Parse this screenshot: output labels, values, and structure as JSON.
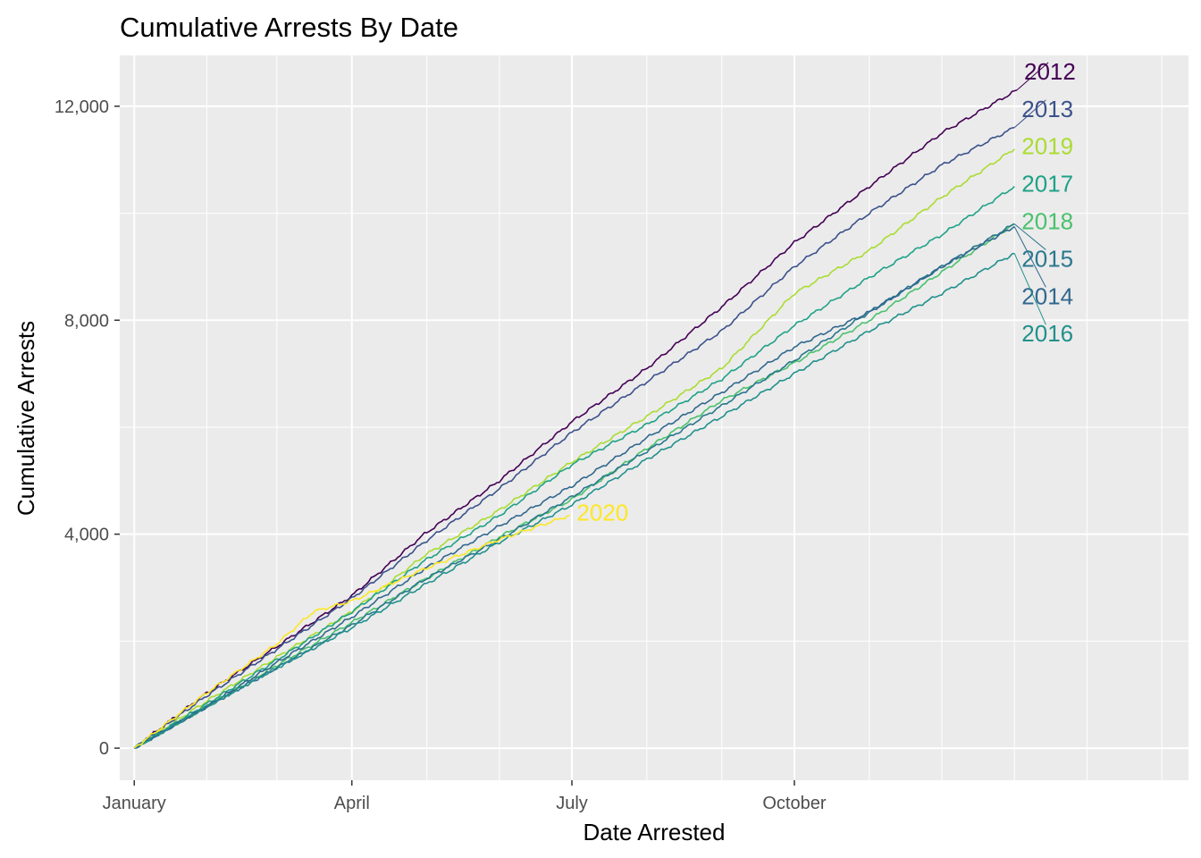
{
  "chart_data": {
    "type": "line",
    "title": "Cumulative Arrests By Date",
    "xlabel": "Date Arrested",
    "ylabel": "Cumulative Arrests",
    "x_unit": "day of year",
    "xlim": [
      -5,
      437
    ],
    "ylim": [
      -600,
      12950
    ],
    "x_ticks": [
      {
        "x": 1,
        "label": "January"
      },
      {
        "x": 91,
        "label": "April"
      },
      {
        "x": 182,
        "label": "July"
      },
      {
        "x": 274,
        "label": "October"
      }
    ],
    "x_minor_gridlines": [
      31,
      60,
      122,
      152,
      213,
      244,
      305,
      335,
      365,
      395,
      426
    ],
    "y_ticks": [
      {
        "y": 0,
        "label": "0"
      },
      {
        "y": 4000,
        "label": "4,000"
      },
      {
        "y": 8000,
        "label": "8,000"
      },
      {
        "y": 12000,
        "label": "12,000"
      }
    ],
    "grid": true,
    "legend": "none (direct labels at line ends)",
    "series": [
      {
        "name": "2012",
        "color": "#440154",
        "x": [
          1,
          30,
          60,
          91,
          121,
          152,
          182,
          213,
          244,
          274,
          305,
          335,
          366
        ],
        "values": [
          0,
          1000,
          1900,
          2850,
          4000,
          5000,
          6100,
          7100,
          8250,
          9450,
          10500,
          11500,
          12300
        ]
      },
      {
        "name": "2013",
        "color": "#3b528b",
        "x": [
          1,
          30,
          60,
          91,
          121,
          152,
          182,
          213,
          244,
          274,
          305,
          335,
          365
        ],
        "values": [
          0,
          950,
          1850,
          2800,
          3850,
          4850,
          5900,
          6850,
          7800,
          9000,
          10000,
          10900,
          11600
        ]
      },
      {
        "name": "2019",
        "color": "#aadc32",
        "x": [
          1,
          30,
          60,
          91,
          121,
          152,
          182,
          213,
          244,
          274,
          305,
          335,
          365
        ],
        "values": [
          0,
          850,
          1700,
          2550,
          3600,
          4450,
          5350,
          6200,
          7100,
          8500,
          9300,
          10300,
          11200
        ]
      },
      {
        "name": "2017",
        "color": "#1fa187",
        "x": [
          1,
          30,
          60,
          91,
          121,
          152,
          182,
          213,
          244,
          274,
          305,
          335,
          365
        ],
        "values": [
          0,
          800,
          1650,
          2550,
          3500,
          4350,
          5300,
          6050,
          6900,
          7900,
          8800,
          9600,
          10500
        ]
      },
      {
        "name": "2018",
        "color": "#4ac16d",
        "x": [
          1,
          30,
          60,
          91,
          121,
          152,
          182,
          213,
          244,
          274,
          305,
          335,
          365
        ],
        "values": [
          0,
          750,
          1550,
          2350,
          3150,
          3950,
          4650,
          5600,
          6500,
          7200,
          8000,
          8900,
          9800
        ]
      },
      {
        "name": "2015",
        "color": "#2a788e",
        "x": [
          1,
          30,
          60,
          91,
          121,
          152,
          182,
          213,
          244,
          274,
          305,
          335,
          365
        ],
        "values": [
          0,
          750,
          1500,
          2300,
          3150,
          3900,
          4700,
          5550,
          6400,
          7250,
          8150,
          9000,
          9800
        ]
      },
      {
        "name": "2014",
        "color": "#31688e",
        "x": [
          1,
          30,
          60,
          91,
          121,
          152,
          182,
          213,
          244,
          274,
          305,
          335,
          365
        ],
        "values": [
          0,
          750,
          1600,
          2450,
          3350,
          4150,
          4900,
          5800,
          6650,
          7500,
          8150,
          9000,
          9750
        ]
      },
      {
        "name": "2016",
        "color": "#21908c",
        "x": [
          1,
          30,
          60,
          91,
          121,
          152,
          182,
          213,
          244,
          274,
          305,
          335,
          365
        ],
        "values": [
          0,
          750,
          1500,
          2250,
          3050,
          3850,
          4550,
          5400,
          6200,
          7000,
          7800,
          8500,
          9250
        ]
      },
      {
        "name": "2020",
        "color": "#fde725",
        "x": [
          1,
          30,
          60,
          75,
          91,
          121,
          152,
          181
        ],
        "values": [
          0,
          1000,
          1950,
          2550,
          2750,
          3350,
          3900,
          4350
        ]
      }
    ],
    "label_positions": {
      "2012": 12650,
      "2013": 11950,
      "2019": 11250,
      "2017": 10550,
      "2018": 9850,
      "2015": 9150,
      "2014": 8450,
      "2016": 7750,
      "2020": 4400
    }
  }
}
